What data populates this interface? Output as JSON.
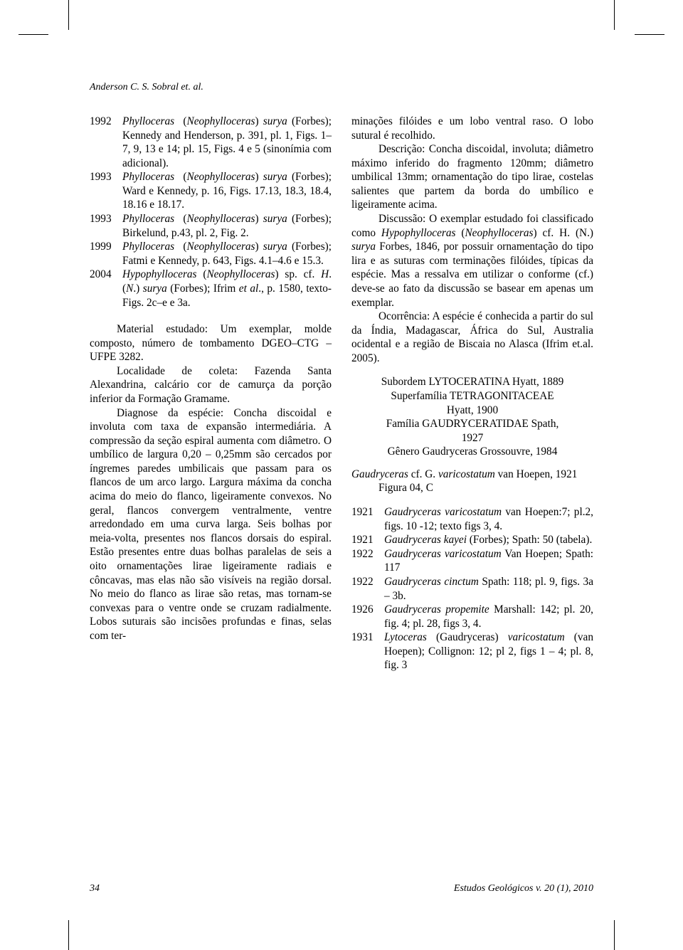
{
  "running_head": "Anderson C. S. Sobral et. al.",
  "col1": {
    "refs": [
      {
        "year": "1992",
        "html": "<span class='i'>Phylloceras</span> &nbsp;(<span class='i'>Neophylloceras</span>) <span class='i'>surya</span> (Forbes); Kennedy and Henderson, p. 391, pl. 1, Figs. 1–7, 9, 13 e 14; pl. 15, Figs. 4 e 5 (sinonímia com adicional)."
      },
      {
        "year": "1993",
        "html": "<span class='i'>Phylloceras</span> &nbsp;(<span class='i'>Neophylloceras</span>) <span class='i'>surya</span> (Forbes); Ward e Kennedy, p. 16, Figs. 17.13, 18.3, 18.4, 18.16 e 18.17."
      },
      {
        "year": "1993",
        "html": "<span class='i'>Phylloceras</span> &nbsp;(<span class='i'>Neophylloceras</span>) <span class='i'>surya</span> (Forbes); Birkelund, p.43, pl. 2, Fig. 2."
      },
      {
        "year": "1999",
        "html": "<span class='i'>Phylloceras</span> &nbsp;(<span class='i'>Neophylloceras</span>) <span class='i'>surya</span> (Forbes); Fatmi e Kennedy, p. 643, Figs. 4.1–4.6 e 15.3."
      },
      {
        "year": "2004",
        "html": "<span class='i'>Hypophylloceras</span> (<span class='i'>Neophylloceras</span>) sp. cf. <span class='i'>H</span>. (<span class='i'>N</span>.) <span class='i'>surya</span> (Forbes); Ifrim <span class='i'>et al</span>., p. 1580, texto-Figs. 2c–e e 3a."
      }
    ],
    "p1": "Material estudado: Um exemplar, molde composto, número de tombamento DGEO–CTG – UFPE 3282.",
    "p2": "Localidade de coleta: Fazenda Santa Alexandrina, calcário cor de camurça da porção inferior da Formação Gramame.",
    "p3": "Diagnose da espécie: Concha discoidal e involuta com taxa de expansão intermediária. A compressão da seção espiral aumenta com diâmetro. O umbílico de largura 0,20 – 0,25mm são cercados por íngremes paredes umbilicais que passam para os flancos de um arco largo. Largura máxima da concha acima do meio do flanco, ligeiramente convexos. No geral, flancos convergem ventralmente, ventre arredondado em uma curva larga. Seis bolhas por meia-volta, presentes nos flancos dorsais do espiral. Estão presentes entre duas bolhas paralelas de seis a oito ornamentações lirae ligeiramente radiais e côncavas, mas elas não são visíveis na região dorsal. No meio do flanco as lirae são retas, mas tornam-se convexas para o ventre onde se cruzam radialmente. Lobos suturais são incisões profundas e finas, selas com ter-"
  },
  "col2": {
    "p0": "minações filóides e um lobo ventral raso. O lobo sutural é recolhido.",
    "p1": "Descrição: Concha discoidal, involuta; diâmetro máximo inferido do fragmento 120mm; diâmetro umbilical 13mm; ornamentação do tipo lirae, costelas salientes que partem da borda do umbílico e ligeiramente acima.",
    "p2_html": "Discussão: O exemplar estudado foi classificado como <span class='i'>Hypophylloceras</span> (<span class='i'>Neophylloceras</span>) cf. H. (N.) <span class='i'>surya</span> Forbes, 1846, por possuir ornamentação do tipo lira e as suturas com terminações filóides, típicas da espécie. Mas a ressalva em utilizar o conforme (cf.) deve-se ao fato da discussão se basear em apenas um exemplar.",
    "p3": "Ocorrência: A espécie é conhecida a partir do sul da Índia, Madagascar, África do Sul, Australia ocidental e a região de Biscaia no Alasca (Ifrim et.al. 2005).",
    "tax": {
      "l1": "Subordem LYTOCERATINA Hyatt, 1889",
      "l2": "Superfamília TETRAGONITACEAE",
      "l3": "Hyatt, 1900",
      "l4": "Família GAUDRYCERATIDAE Spath,",
      "l5": "1927",
      "l6": "Gênero Gaudryceras Grossouvre, 1984"
    },
    "species_html": "<span class='i'>Gaudryceras</span> cf. G. <span class='i'>varicostatum</span> van Hoepen, 1921",
    "fig_line": "Figura 04, C",
    "refs": [
      {
        "year": "1921",
        "html": "<span class='i'>Gaudryceras varicostatum</span> van Hoepen:7; pl.2, figs. 10 -12; texto figs 3, 4."
      },
      {
        "year": "1921",
        "html": "<span class='i'>Gaudryceras kayei</span> (Forbes); Spath: 50 (tabela)."
      },
      {
        "year": "1922",
        "html": "<span class='i'>Gaudryceras varicostatum</span> Van Hoepen; Spath: 117"
      },
      {
        "year": "1922",
        "html": "<span class='i'>Gaudryceras cinctum</span> Spath: 118; pl. 9, figs. 3a – 3b."
      },
      {
        "year": "1926",
        "html": "<span class='i'>Gaudryceras propemite</span> Marshall: 142; pl. 20, fig. 4; pl. 28, figs 3, 4."
      },
      {
        "year": "1931",
        "html": "<span class='i'>Lytoceras</span> (Gaudryceras) <span class='i'>varicostatum</span> (van Hoepen); Collignon: 12; pl 2, figs 1 – 4; pl. 8, fig. 3"
      }
    ]
  },
  "footer": {
    "page": "34",
    "journal": "Estudos Geológicos v. 20 (1), 2010"
  }
}
